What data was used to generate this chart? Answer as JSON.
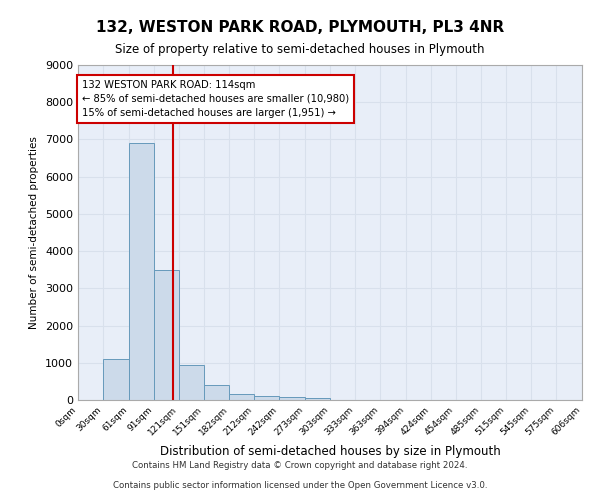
{
  "title": "132, WESTON PARK ROAD, PLYMOUTH, PL3 4NR",
  "subtitle": "Size of property relative to semi-detached houses in Plymouth",
  "xlabel": "Distribution of semi-detached houses by size in Plymouth",
  "ylabel": "Number of semi-detached properties",
  "bin_labels": [
    "0sqm",
    "30sqm",
    "61sqm",
    "91sqm",
    "121sqm",
    "151sqm",
    "182sqm",
    "212sqm",
    "242sqm",
    "273sqm",
    "303sqm",
    "333sqm",
    "363sqm",
    "394sqm",
    "424sqm",
    "454sqm",
    "485sqm",
    "515sqm",
    "545sqm",
    "575sqm",
    "606sqm"
  ],
  "bar_values": [
    0,
    1100,
    6900,
    3500,
    950,
    400,
    150,
    100,
    80,
    50,
    0,
    0,
    0,
    0,
    0,
    0,
    0,
    0,
    0,
    0
  ],
  "bar_color": "#ccdaea",
  "bar_edge_color": "#6699bb",
  "grid_color": "#d8e0ec",
  "background_color": "#e8eef8",
  "vline_x": 114,
  "vline_color": "#cc0000",
  "annotation_text": "132 WESTON PARK ROAD: 114sqm\n← 85% of semi-detached houses are smaller (10,980)\n15% of semi-detached houses are larger (1,951) →",
  "annotation_box_color": "#cc0000",
  "ylim": [
    0,
    9000
  ],
  "yticks": [
    0,
    1000,
    2000,
    3000,
    4000,
    5000,
    6000,
    7000,
    8000,
    9000
  ],
  "footer1": "Contains HM Land Registry data © Crown copyright and database right 2024.",
  "footer2": "Contains public sector information licensed under the Open Government Licence v3.0.",
  "bin_edges": [
    0,
    30,
    61,
    91,
    121,
    151,
    182,
    212,
    242,
    273,
    303,
    333,
    363,
    394,
    424,
    454,
    485,
    515,
    545,
    575,
    606
  ]
}
